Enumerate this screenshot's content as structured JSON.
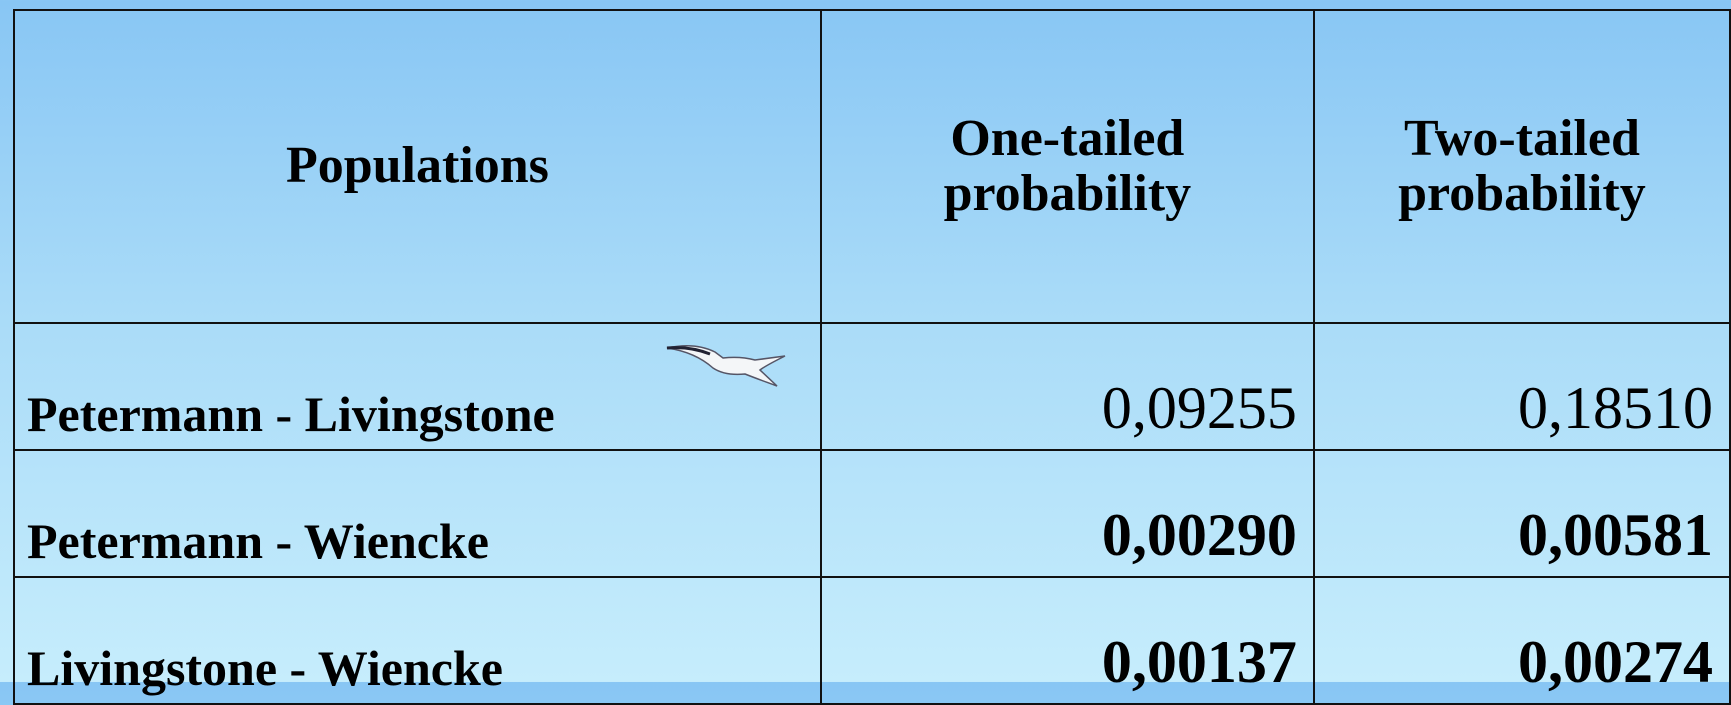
{
  "table": {
    "header": [
      "Populations",
      "One-tailed probability",
      "Two-tailed probability"
    ],
    "rows": [
      [
        "Petermann - Livingstone",
        "0,09255",
        "0,18510"
      ],
      [
        "Petermann - Wiencke",
        "0,00290",
        "0,00581"
      ],
      [
        "Livingstone - Wiencke",
        "0,00137",
        "0,00274"
      ]
    ]
  }
}
